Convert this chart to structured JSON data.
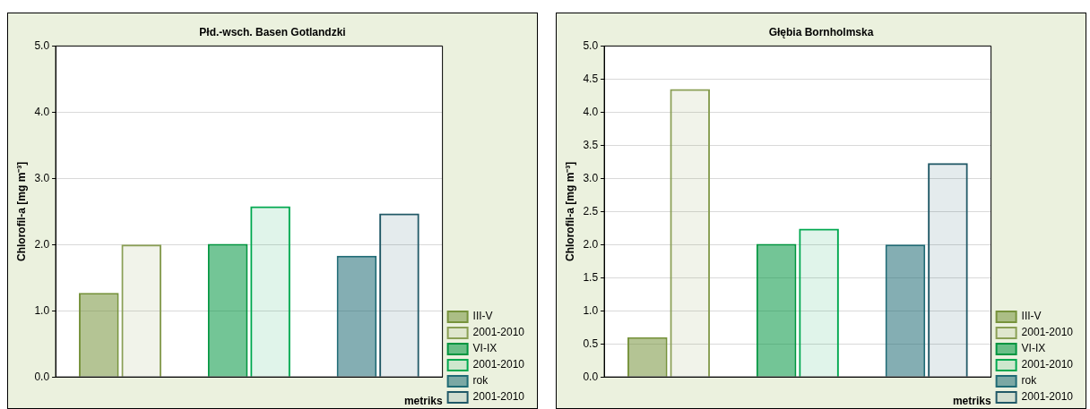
{
  "chart_data": [
    {
      "type": "bar",
      "title": "Płd.-wsch. Basen Gotlandzki",
      "xlabel": "metriks",
      "ylabel": "Chlorofil-a [mg m⁻³]",
      "categories": [
        null,
        null,
        null
      ],
      "series": [
        {
          "name": "III-V",
          "color": "#77933c",
          "values": [
            1.27,
            null,
            null
          ]
        },
        {
          "name": "2001-2010",
          "color": "#8a9f55",
          "values": [
            2.0,
            null,
            null
          ]
        },
        {
          "name": "VI-IX",
          "color": "#00953f",
          "values": [
            null,
            2.01,
            null
          ]
        },
        {
          "name": "2001-2010",
          "color": "#00a84f",
          "values": [
            null,
            2.58,
            null
          ]
        },
        {
          "name": "rok",
          "color": "#1f6b75",
          "values": [
            null,
            null,
            1.83
          ]
        },
        {
          "name": "2001-2010",
          "color": "#215967",
          "values": [
            null,
            null,
            2.47
          ]
        }
      ],
      "ylim": [
        0,
        5
      ],
      "yticks": [
        {
          "value": 0,
          "label": "0.0"
        },
        {
          "value": 1,
          "label": "1.0"
        },
        {
          "value": 2,
          "label": "2.0"
        },
        {
          "value": 3,
          "label": "3.0"
        },
        {
          "value": 4,
          "label": "4.0"
        },
        {
          "value": 5,
          "label": "5.0"
        }
      ],
      "grid": "y",
      "legend": "bottom right"
    },
    {
      "type": "bar",
      "title": "Głębia Bornholmska",
      "xlabel": "metriks",
      "ylabel": "Chlorofil-a [mg m⁻³]",
      "categories": [
        null,
        null,
        null
      ],
      "series": [
        {
          "name": "III-V",
          "color": "#77933c",
          "values": [
            0.6,
            null,
            null
          ]
        },
        {
          "name": "2001-2010",
          "color": "#8a9f55",
          "values": [
            4.35,
            null,
            null
          ]
        },
        {
          "name": "VI-IX",
          "color": "#00953f",
          "values": [
            null,
            2.01,
            null
          ]
        },
        {
          "name": "2001-2010",
          "color": "#00a84f",
          "values": [
            null,
            2.24,
            null
          ]
        },
        {
          "name": "rok",
          "color": "#1f6b75",
          "values": [
            null,
            null,
            2.0
          ]
        },
        {
          "name": "2001-2010",
          "color": "#215967",
          "values": [
            null,
            null,
            3.23
          ]
        }
      ],
      "ylim": [
        0,
        5
      ],
      "yticks": [
        {
          "value": 0,
          "label": "0.0"
        },
        {
          "value": 0.5,
          "label": "0.5"
        },
        {
          "value": 1,
          "label": "1.0"
        },
        {
          "value": 1.5,
          "label": "1.5"
        },
        {
          "value": 2,
          "label": "2.0"
        },
        {
          "value": 2.5,
          "label": "2.5"
        },
        {
          "value": 3,
          "label": "3.0"
        },
        {
          "value": 3.5,
          "label": "3.5"
        },
        {
          "value": 4,
          "label": "4.0"
        },
        {
          "value": 4.5,
          "label": "4.5"
        },
        {
          "value": 5,
          "label": "5.0"
        }
      ],
      "grid": "y",
      "legend": "bottom right"
    }
  ]
}
